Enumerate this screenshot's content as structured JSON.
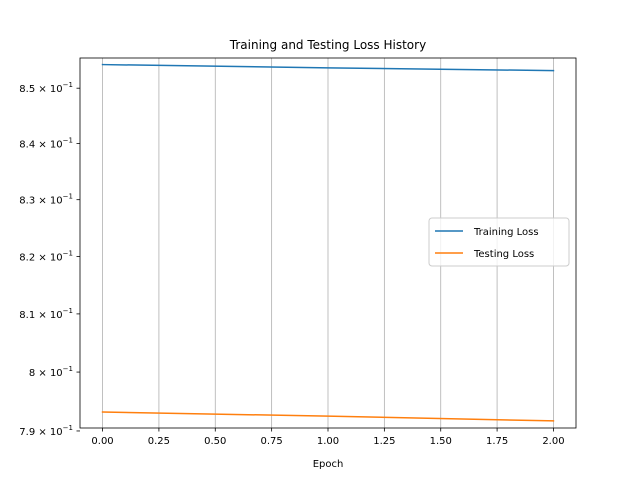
{
  "chart_data": {
    "type": "line",
    "title": "Training and Testing Loss History",
    "xlabel": "Epoch",
    "ylabel": "",
    "yscale": "log",
    "xlim": [
      -0.1,
      2.1
    ],
    "ylim": [
      0.7905,
      0.8555
    ],
    "grid": "vertical",
    "legend_position": "center-right",
    "x_ticks": [
      0.0,
      0.25,
      0.5,
      0.75,
      1.0,
      1.25,
      1.5,
      1.75,
      2.0
    ],
    "x_tick_labels": [
      "0.00",
      "0.25",
      "0.50",
      "0.75",
      "1.00",
      "1.25",
      "1.50",
      "1.75",
      "2.00"
    ],
    "y_ticks": [
      0.79,
      0.8,
      0.81,
      0.82,
      0.83,
      0.84,
      0.85
    ],
    "y_tick_labels": [
      {
        "mantissa": "7.9",
        "exp": "−1"
      },
      {
        "mantissa": "8",
        "exp": "−1"
      },
      {
        "mantissa": "8.1",
        "exp": "−1"
      },
      {
        "mantissa": "8.2",
        "exp": "−1"
      },
      {
        "mantissa": "8.3",
        "exp": "−1"
      },
      {
        "mantissa": "8.4",
        "exp": "−1"
      },
      {
        "mantissa": "8.5",
        "exp": "−1"
      }
    ],
    "x": [
      0,
      1,
      2
    ],
    "series": [
      {
        "name": "Training Loss",
        "values": [
          0.8543,
          0.8537,
          0.8532
        ],
        "color": "#1f77b4"
      },
      {
        "name": "Testing Loss",
        "values": [
          0.7932,
          0.7925,
          0.7917
        ],
        "color": "#ff7f0e"
      }
    ]
  }
}
